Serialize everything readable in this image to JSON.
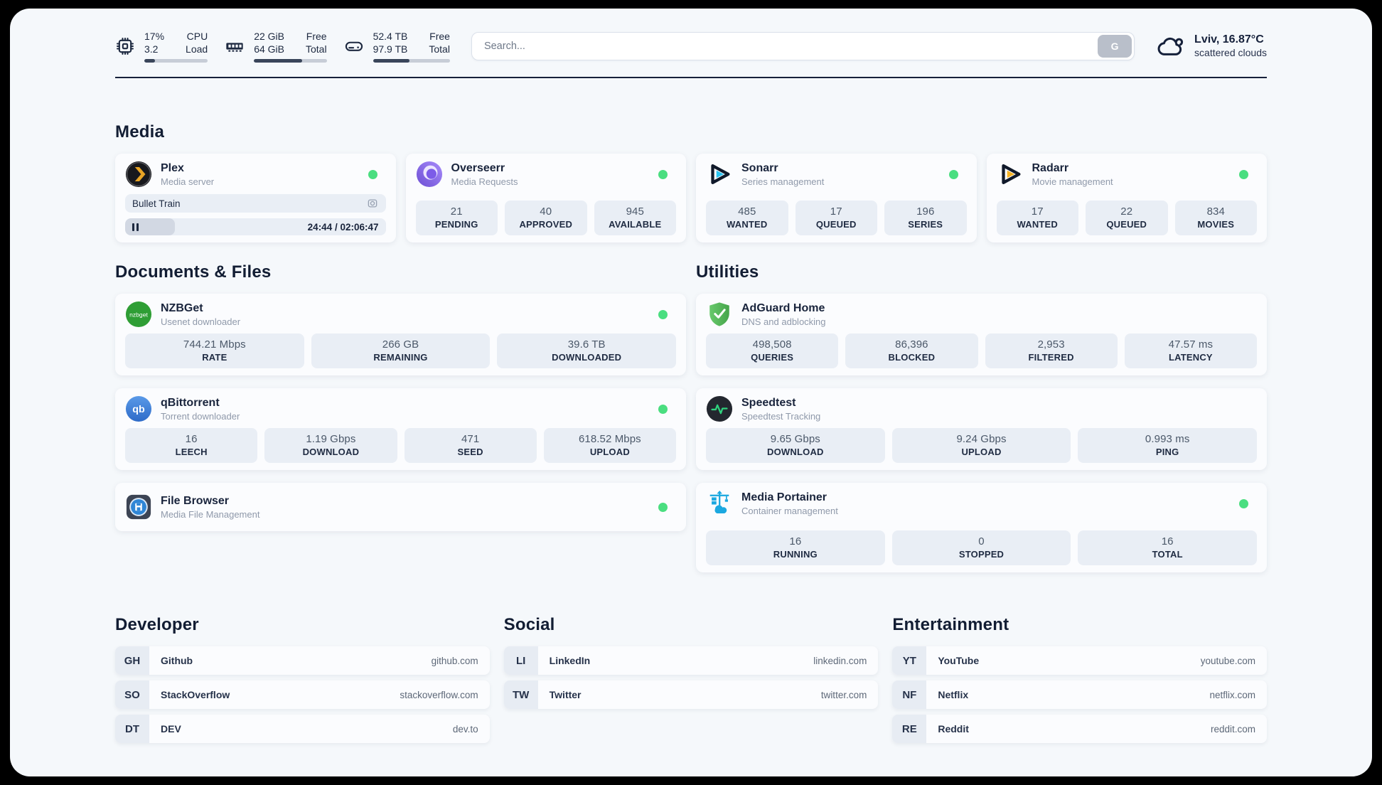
{
  "colors": {
    "status_online": "#4ade80"
  },
  "header": {
    "system": [
      {
        "icon": "cpu-icon",
        "rows": [
          {
            "value": "17%",
            "label": "CPU"
          },
          {
            "value": "3.2",
            "label": "Load"
          }
        ],
        "progress_pct": 17
      },
      {
        "icon": "ram-icon",
        "rows": [
          {
            "value": "22 GiB",
            "label": "Free"
          },
          {
            "value": "64 GiB",
            "label": "Total"
          }
        ],
        "progress_pct": 66
      },
      {
        "icon": "disk-icon",
        "rows": [
          {
            "value": "52.4 TB",
            "label": "Free"
          },
          {
            "value": "97.9 TB",
            "label": "Total"
          }
        ],
        "progress_pct": 47
      }
    ],
    "search": {
      "placeholder": "Search...",
      "engine_button_label": "G"
    },
    "weather": {
      "icon": "cloud-icon",
      "summary": "Lviv, 16.87°C",
      "condition": "scattered clouds"
    }
  },
  "media": {
    "title": "Media",
    "plex": {
      "name": "Plex",
      "description": "Media server",
      "icon": "plex-icon",
      "online": true,
      "now_playing": {
        "title": "Bullet Train",
        "time": "24:44 / 02:06:47",
        "progress_pct": 19
      }
    },
    "apps": [
      {
        "name": "Overseerr",
        "description": "Media Requests",
        "icon": "overseerr-icon",
        "online": true,
        "stats": [
          {
            "value": "21",
            "label": "PENDING"
          },
          {
            "value": "40",
            "label": "APPROVED"
          },
          {
            "value": "945",
            "label": "AVAILABLE"
          }
        ]
      },
      {
        "name": "Sonarr",
        "description": "Series management",
        "icon": "sonarr-icon",
        "online": true,
        "stats": [
          {
            "value": "485",
            "label": "WANTED"
          },
          {
            "value": "17",
            "label": "QUEUED"
          },
          {
            "value": "196",
            "label": "SERIES"
          }
        ]
      },
      {
        "name": "Radarr",
        "description": "Movie management",
        "icon": "radarr-icon",
        "online": true,
        "stats": [
          {
            "value": "17",
            "label": "WANTED"
          },
          {
            "value": "22",
            "label": "QUEUED"
          },
          {
            "value": "834",
            "label": "MOVIES"
          }
        ]
      }
    ]
  },
  "documents": {
    "title": "Documents & Files",
    "apps": [
      {
        "name": "NZBGet",
        "description": "Usenet downloader",
        "icon": "nzbget-icon",
        "icon_text": "nzbget",
        "online": true,
        "stats": [
          {
            "value": "744.21 Mbps",
            "label": "RATE"
          },
          {
            "value": "266 GB",
            "label": "REMAINING"
          },
          {
            "value": "39.6 TB",
            "label": "DOWNLOADED"
          }
        ]
      },
      {
        "name": "qBittorrent",
        "description": "Torrent downloader",
        "icon": "qbittorrent-icon",
        "icon_text": "qb",
        "online": true,
        "stats": [
          {
            "value": "16",
            "label": "LEECH"
          },
          {
            "value": "1.19 Gbps",
            "label": "DOWNLOAD"
          },
          {
            "value": "471",
            "label": "SEED"
          },
          {
            "value": "618.52 Mbps",
            "label": "UPLOAD"
          }
        ]
      },
      {
        "name": "File Browser",
        "description": "Media File Management",
        "icon": "filebrowser-icon",
        "online": true,
        "stats": []
      }
    ]
  },
  "utilities": {
    "title": "Utilities",
    "apps": [
      {
        "name": "AdGuard Home",
        "description": "DNS and adblocking",
        "icon": "adguard-icon",
        "online": false,
        "stats": [
          {
            "value": "498,508",
            "label": "QUERIES"
          },
          {
            "value": "86,396",
            "label": "BLOCKED"
          },
          {
            "value": "2,953",
            "label": "FILTERED"
          },
          {
            "value": "47.57 ms",
            "label": "LATENCY"
          }
        ]
      },
      {
        "name": "Speedtest",
        "description": "Speedtest Tracking",
        "icon": "speedtest-icon",
        "online": false,
        "stats": [
          {
            "value": "9.65 Gbps",
            "label": "DOWNLOAD"
          },
          {
            "value": "9.24 Gbps",
            "label": "UPLOAD"
          },
          {
            "value": "0.993 ms",
            "label": "PING"
          }
        ]
      },
      {
        "name": "Media Portainer",
        "description": "Container management",
        "icon": "portainer-icon",
        "online": true,
        "stats": [
          {
            "value": "16",
            "label": "RUNNING"
          },
          {
            "value": "0",
            "label": "STOPPED"
          },
          {
            "value": "16",
            "label": "TOTAL"
          }
        ]
      }
    ]
  },
  "bookmarks": [
    {
      "title": "Developer",
      "items": [
        {
          "abbr": "GH",
          "name": "Github",
          "url": "github.com"
        },
        {
          "abbr": "SO",
          "name": "StackOverflow",
          "url": "stackoverflow.com"
        },
        {
          "abbr": "DT",
          "name": "DEV",
          "url": "dev.to"
        }
      ]
    },
    {
      "title": "Social",
      "items": [
        {
          "abbr": "LI",
          "name": "LinkedIn",
          "url": "linkedin.com"
        },
        {
          "abbr": "TW",
          "name": "Twitter",
          "url": "twitter.com"
        }
      ]
    },
    {
      "title": "Entertainment",
      "items": [
        {
          "abbr": "YT",
          "name": "YouTube",
          "url": "youtube.com"
        },
        {
          "abbr": "NF",
          "name": "Netflix",
          "url": "netflix.com"
        },
        {
          "abbr": "RE",
          "name": "Reddit",
          "url": "reddit.com"
        }
      ]
    }
  ]
}
